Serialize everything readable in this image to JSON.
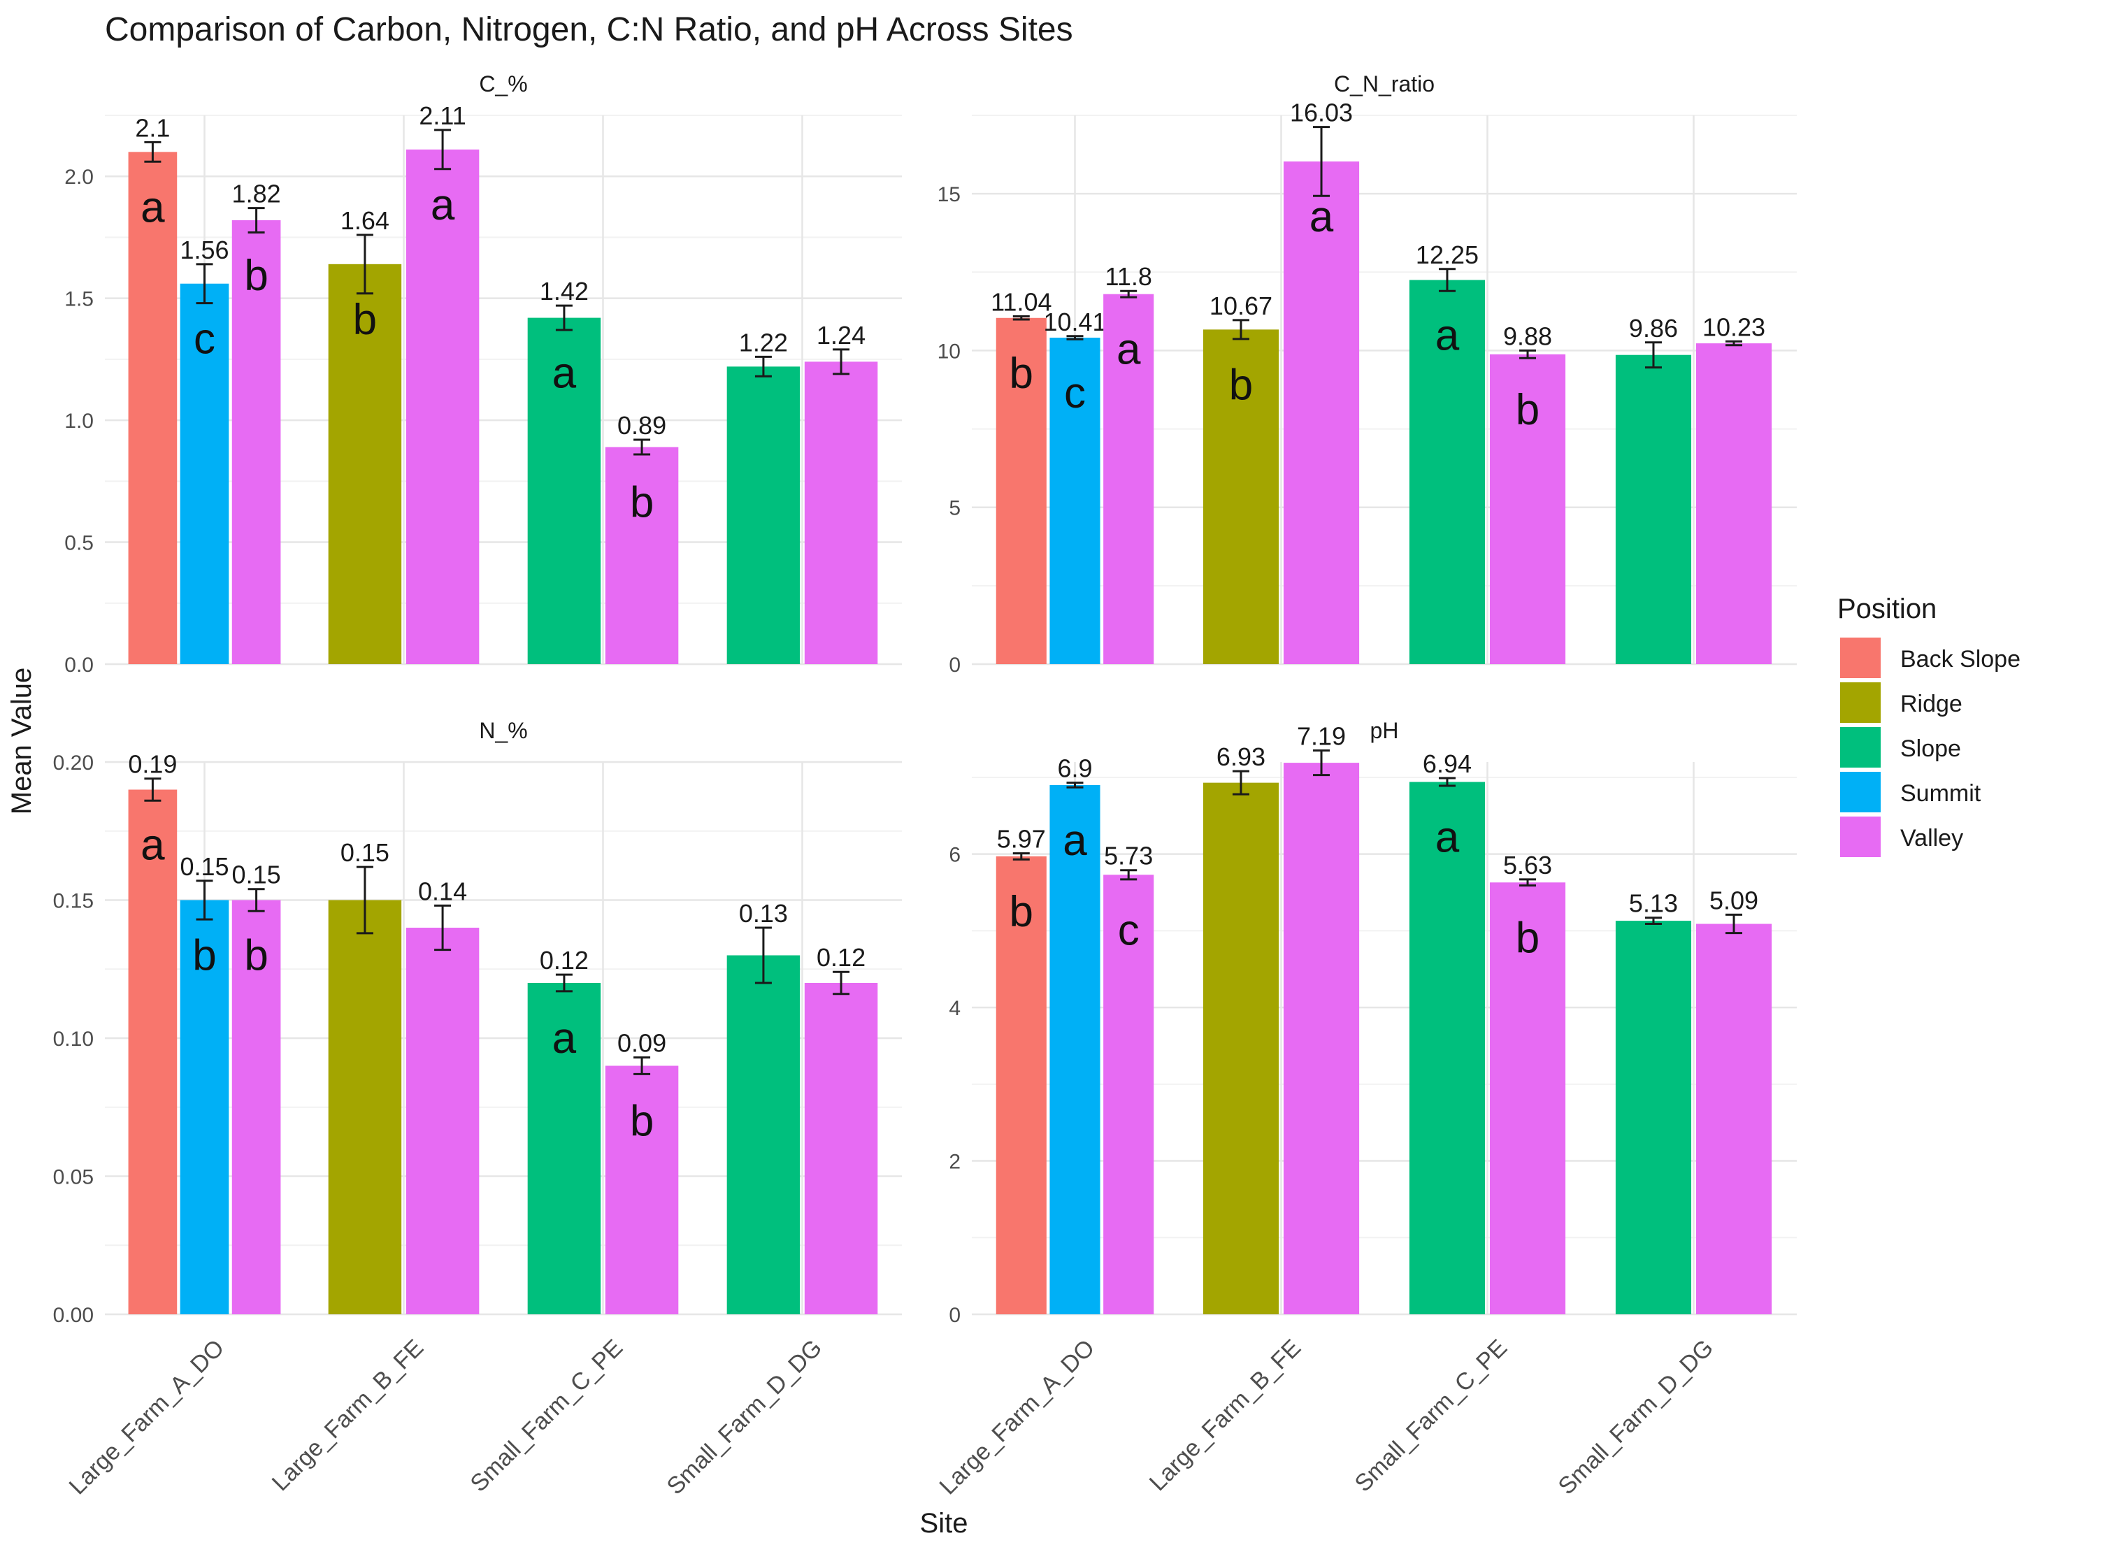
{
  "title": "Comparison of Carbon, Nitrogen, C:N Ratio, and pH Across Sites",
  "xlabel": "Site",
  "ylabel": "Mean Value",
  "legend": {
    "title": "Position",
    "placement": "right",
    "items": [
      {
        "name": "Back Slope",
        "color": "#F8766D"
      },
      {
        "name": "Ridge",
        "color": "#A3A500"
      },
      {
        "name": "Slope",
        "color": "#00BF7D"
      },
      {
        "name": "Summit",
        "color": "#00B0F6"
      },
      {
        "name": "Valley",
        "color": "#E76BF3"
      }
    ]
  },
  "sites": [
    "Large_Farm_A_DO",
    "Large_Farm_B_FE",
    "Small_Farm_C_PE",
    "Small_Farm_D_DG"
  ],
  "chart_data": [
    {
      "type": "bar",
      "facet": "C_%",
      "ylim": [
        0,
        2.25
      ],
      "yticks": [
        0.0,
        0.5,
        1.0,
        1.5,
        2.0
      ],
      "tick_labels": [
        "0.0",
        "0.5",
        "1.0",
        "1.5",
        "2.0"
      ],
      "grid": true,
      "error_bars": true,
      "bars": [
        {
          "site": "Large_Farm_A_DO",
          "position": "Back Slope",
          "value": 2.1,
          "label": "2.1",
          "err": 0.04,
          "letter": "a"
        },
        {
          "site": "Large_Farm_A_DO",
          "position": "Summit",
          "value": 1.56,
          "label": "1.56",
          "err": 0.08,
          "letter": "c"
        },
        {
          "site": "Large_Farm_A_DO",
          "position": "Valley",
          "value": 1.82,
          "label": "1.82",
          "err": 0.05,
          "letter": "b"
        },
        {
          "site": "Large_Farm_B_FE",
          "position": "Ridge",
          "value": 1.64,
          "label": "1.64",
          "err": 0.12,
          "letter": "b"
        },
        {
          "site": "Large_Farm_B_FE",
          "position": "Valley",
          "value": 2.11,
          "label": "2.11",
          "err": 0.08,
          "letter": "a"
        },
        {
          "site": "Small_Farm_C_PE",
          "position": "Slope",
          "value": 1.42,
          "label": "1.42",
          "err": 0.05,
          "letter": "a"
        },
        {
          "site": "Small_Farm_C_PE",
          "position": "Valley",
          "value": 0.89,
          "label": "0.89",
          "err": 0.03,
          "letter": "b"
        },
        {
          "site": "Small_Farm_D_DG",
          "position": "Slope",
          "value": 1.22,
          "label": "1.22",
          "err": 0.04,
          "letter": ""
        },
        {
          "site": "Small_Farm_D_DG",
          "position": "Valley",
          "value": 1.24,
          "label": "1.24",
          "err": 0.05,
          "letter": ""
        }
      ]
    },
    {
      "type": "bar",
      "facet": "C_N_ratio",
      "ylim": [
        0,
        17.5
      ],
      "yticks": [
        0,
        5,
        10,
        15
      ],
      "tick_labels": [
        "0",
        "5",
        "10",
        "15"
      ],
      "grid": true,
      "error_bars": true,
      "bars": [
        {
          "site": "Large_Farm_A_DO",
          "position": "Back Slope",
          "value": 11.04,
          "label": "11.04",
          "err": 0.05,
          "letter": "b"
        },
        {
          "site": "Large_Farm_A_DO",
          "position": "Summit",
          "value": 10.41,
          "label": "10.41",
          "err": 0.05,
          "letter": "c"
        },
        {
          "site": "Large_Farm_A_DO",
          "position": "Valley",
          "value": 11.8,
          "label": "11.8",
          "err": 0.1,
          "letter": "a"
        },
        {
          "site": "Large_Farm_B_FE",
          "position": "Ridge",
          "value": 10.67,
          "label": "10.67",
          "err": 0.3,
          "letter": "b"
        },
        {
          "site": "Large_Farm_B_FE",
          "position": "Valley",
          "value": 16.03,
          "label": "16.03",
          "err": 1.1,
          "letter": "a"
        },
        {
          "site": "Small_Farm_C_PE",
          "position": "Slope",
          "value": 12.25,
          "label": "12.25",
          "err": 0.35,
          "letter": "a"
        },
        {
          "site": "Small_Farm_C_PE",
          "position": "Valley",
          "value": 9.88,
          "label": "9.88",
          "err": 0.12,
          "letter": "b"
        },
        {
          "site": "Small_Farm_D_DG",
          "position": "Slope",
          "value": 9.86,
          "label": "9.86",
          "err": 0.4,
          "letter": ""
        },
        {
          "site": "Small_Farm_D_DG",
          "position": "Valley",
          "value": 10.23,
          "label": "10.23",
          "err": 0.06,
          "letter": ""
        }
      ]
    },
    {
      "type": "bar",
      "facet": "N_%",
      "ylim": [
        0,
        0.2
      ],
      "yticks": [
        0.0,
        0.05,
        0.1,
        0.15,
        0.2
      ],
      "tick_labels": [
        "0.00",
        "0.05",
        "0.10",
        "0.15",
        "0.20"
      ],
      "grid": true,
      "error_bars": true,
      "bars": [
        {
          "site": "Large_Farm_A_DO",
          "position": "Back Slope",
          "value": 0.19,
          "label": "0.19",
          "err": 0.004,
          "letter": "a"
        },
        {
          "site": "Large_Farm_A_DO",
          "position": "Summit",
          "value": 0.15,
          "label": "0.15",
          "err": 0.007,
          "letter": "b"
        },
        {
          "site": "Large_Farm_A_DO",
          "position": "Valley",
          "value": 0.15,
          "label": "0.15",
          "err": 0.004,
          "letter": "b"
        },
        {
          "site": "Large_Farm_B_FE",
          "position": "Ridge",
          "value": 0.15,
          "label": "0.15",
          "err": 0.012,
          "letter": ""
        },
        {
          "site": "Large_Farm_B_FE",
          "position": "Valley",
          "value": 0.14,
          "label": "0.14",
          "err": 0.008,
          "letter": ""
        },
        {
          "site": "Small_Farm_C_PE",
          "position": "Slope",
          "value": 0.12,
          "label": "0.12",
          "err": 0.003,
          "letter": "a"
        },
        {
          "site": "Small_Farm_C_PE",
          "position": "Valley",
          "value": 0.09,
          "label": "0.09",
          "err": 0.003,
          "letter": "b"
        },
        {
          "site": "Small_Farm_D_DG",
          "position": "Slope",
          "value": 0.13,
          "label": "0.13",
          "err": 0.01,
          "letter": ""
        },
        {
          "site": "Small_Farm_D_DG",
          "position": "Valley",
          "value": 0.12,
          "label": "0.12",
          "err": 0.004,
          "letter": ""
        }
      ]
    },
    {
      "type": "bar",
      "facet": "pH",
      "ylim": [
        0,
        7.2
      ],
      "yticks": [
        0,
        2,
        4,
        6
      ],
      "tick_labels": [
        "0",
        "2",
        "4",
        "6"
      ],
      "grid": true,
      "error_bars": true,
      "bars": [
        {
          "site": "Large_Farm_A_DO",
          "position": "Back Slope",
          "value": 5.97,
          "label": "5.97",
          "err": 0.04,
          "letter": "b"
        },
        {
          "site": "Large_Farm_A_DO",
          "position": "Summit",
          "value": 6.9,
          "label": "6.9",
          "err": 0.03,
          "letter": "a"
        },
        {
          "site": "Large_Farm_A_DO",
          "position": "Valley",
          "value": 5.73,
          "label": "5.73",
          "err": 0.06,
          "letter": "c"
        },
        {
          "site": "Large_Farm_B_FE",
          "position": "Ridge",
          "value": 6.93,
          "label": "6.93",
          "err": 0.15,
          "letter": ""
        },
        {
          "site": "Large_Farm_B_FE",
          "position": "Valley",
          "value": 7.19,
          "label": "7.19",
          "err": 0.16,
          "letter": ""
        },
        {
          "site": "Small_Farm_C_PE",
          "position": "Slope",
          "value": 6.94,
          "label": "6.94",
          "err": 0.05,
          "letter": "a"
        },
        {
          "site": "Small_Farm_C_PE",
          "position": "Valley",
          "value": 5.63,
          "label": "5.63",
          "err": 0.04,
          "letter": "b"
        },
        {
          "site": "Small_Farm_D_DG",
          "position": "Slope",
          "value": 5.13,
          "label": "5.13",
          "err": 0.04,
          "letter": ""
        },
        {
          "site": "Small_Farm_D_DG",
          "position": "Valley",
          "value": 5.09,
          "label": "5.09",
          "err": 0.12,
          "letter": ""
        }
      ]
    }
  ]
}
